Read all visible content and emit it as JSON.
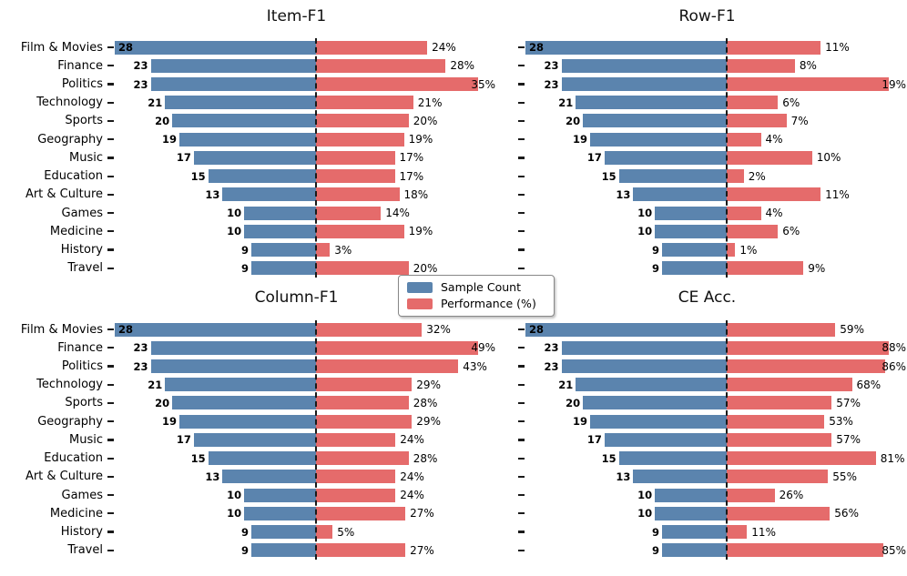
{
  "colors": {
    "blue": "#5b84ae",
    "red": "#e56b6b",
    "dash": "#1a1a1a",
    "text": "#000000",
    "background": "#ffffff"
  },
  "legend": {
    "items": [
      {
        "label": "Sample Count",
        "color_key": "blue"
      },
      {
        "label": "Performance (%)",
        "color_key": "red"
      }
    ]
  },
  "chart_data": {
    "type": "bar",
    "variant": "diverging-horizontal-2x2",
    "categories": [
      "Film & Movies",
      "Finance",
      "Politics",
      "Technology",
      "Sports",
      "Geography",
      "Music",
      "Education",
      "Art & Culture",
      "Games",
      "Medicine",
      "History",
      "Travel"
    ],
    "sample_counts": [
      28,
      23,
      23,
      21,
      20,
      19,
      17,
      15,
      13,
      10,
      10,
      9,
      9
    ],
    "subplots": [
      {
        "title": "Item-F1",
        "performance_pct": [
          24,
          28,
          35,
          21,
          20,
          19,
          17,
          17,
          18,
          14,
          19,
          3,
          20
        ]
      },
      {
        "title": "Row-F1",
        "performance_pct": [
          11,
          8,
          19,
          6,
          7,
          4,
          10,
          2,
          11,
          4,
          6,
          1,
          9
        ]
      },
      {
        "title": "Column-F1",
        "performance_pct": [
          32,
          49,
          43,
          29,
          28,
          29,
          24,
          28,
          24,
          24,
          27,
          5,
          27
        ]
      },
      {
        "title": "CE Acc.",
        "performance_pct": [
          59,
          88,
          86,
          68,
          57,
          53,
          57,
          81,
          55,
          26,
          56,
          11,
          85
        ]
      }
    ],
    "legend_entries": [
      "Sample Count",
      "Performance (%)"
    ],
    "layout_hints": {
      "zero_line": "black dashed vertical line per subplot; blue sample-count bars extend left, red performance bars extend right",
      "scaling": "blue bars scaled to max count 28 in every subplot; red bars scaled to each subplot's own max percentage",
      "category_labels": "shown only on left-column subplots; right-column subplots show tick dashes only",
      "legend_position": "figure center, between top and bottom subplot rows",
      "grid": false,
      "frame": false
    }
  }
}
